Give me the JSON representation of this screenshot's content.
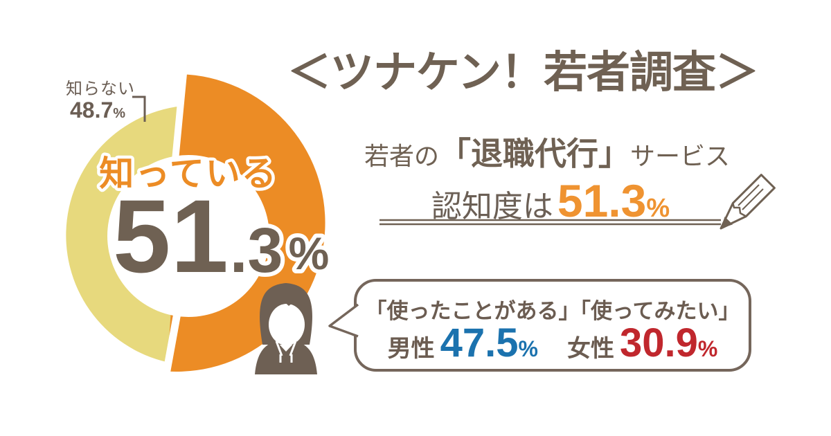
{
  "title": "＜ツナケン！若者調査＞",
  "chart_data": {
    "type": "pie",
    "title": "若者の退職代行サービス認知度",
    "slices": [
      {
        "label": "知っている",
        "value": 51.3,
        "color": "#EC8C25"
      },
      {
        "label": "知らない",
        "value": 48.7,
        "color": "#E7D97D"
      }
    ],
    "legend_position": "none",
    "center_label": {
      "text": "知っている",
      "value_int": "51",
      "value_dec": ".3",
      "percent_sign": "%"
    },
    "outer_label": {
      "text": "知らない",
      "value": "48.7",
      "percent_sign": "%"
    }
  },
  "subtitle": {
    "prefix": "若者の",
    "highlight": "「退職代行」",
    "suffix": "サービス"
  },
  "awareness": {
    "prefix": "認知度は",
    "value": "51.3",
    "percent_sign": "%"
  },
  "bubble": {
    "line1": "「使ったことがある」「使ってみたい」",
    "male_label": "男性",
    "male_value": "47.5",
    "male_percent": "%",
    "female_label": "女性",
    "female_value": "30.9",
    "female_percent": "%"
  },
  "colors": {
    "brown_text": "#6F6153",
    "orange": "#EC8C25",
    "orange_text": "#EF9331",
    "yellow": "#E7D97D",
    "male_blue": "#1B72AE",
    "female_red": "#C0272D",
    "bubble_border": "#75665B"
  }
}
